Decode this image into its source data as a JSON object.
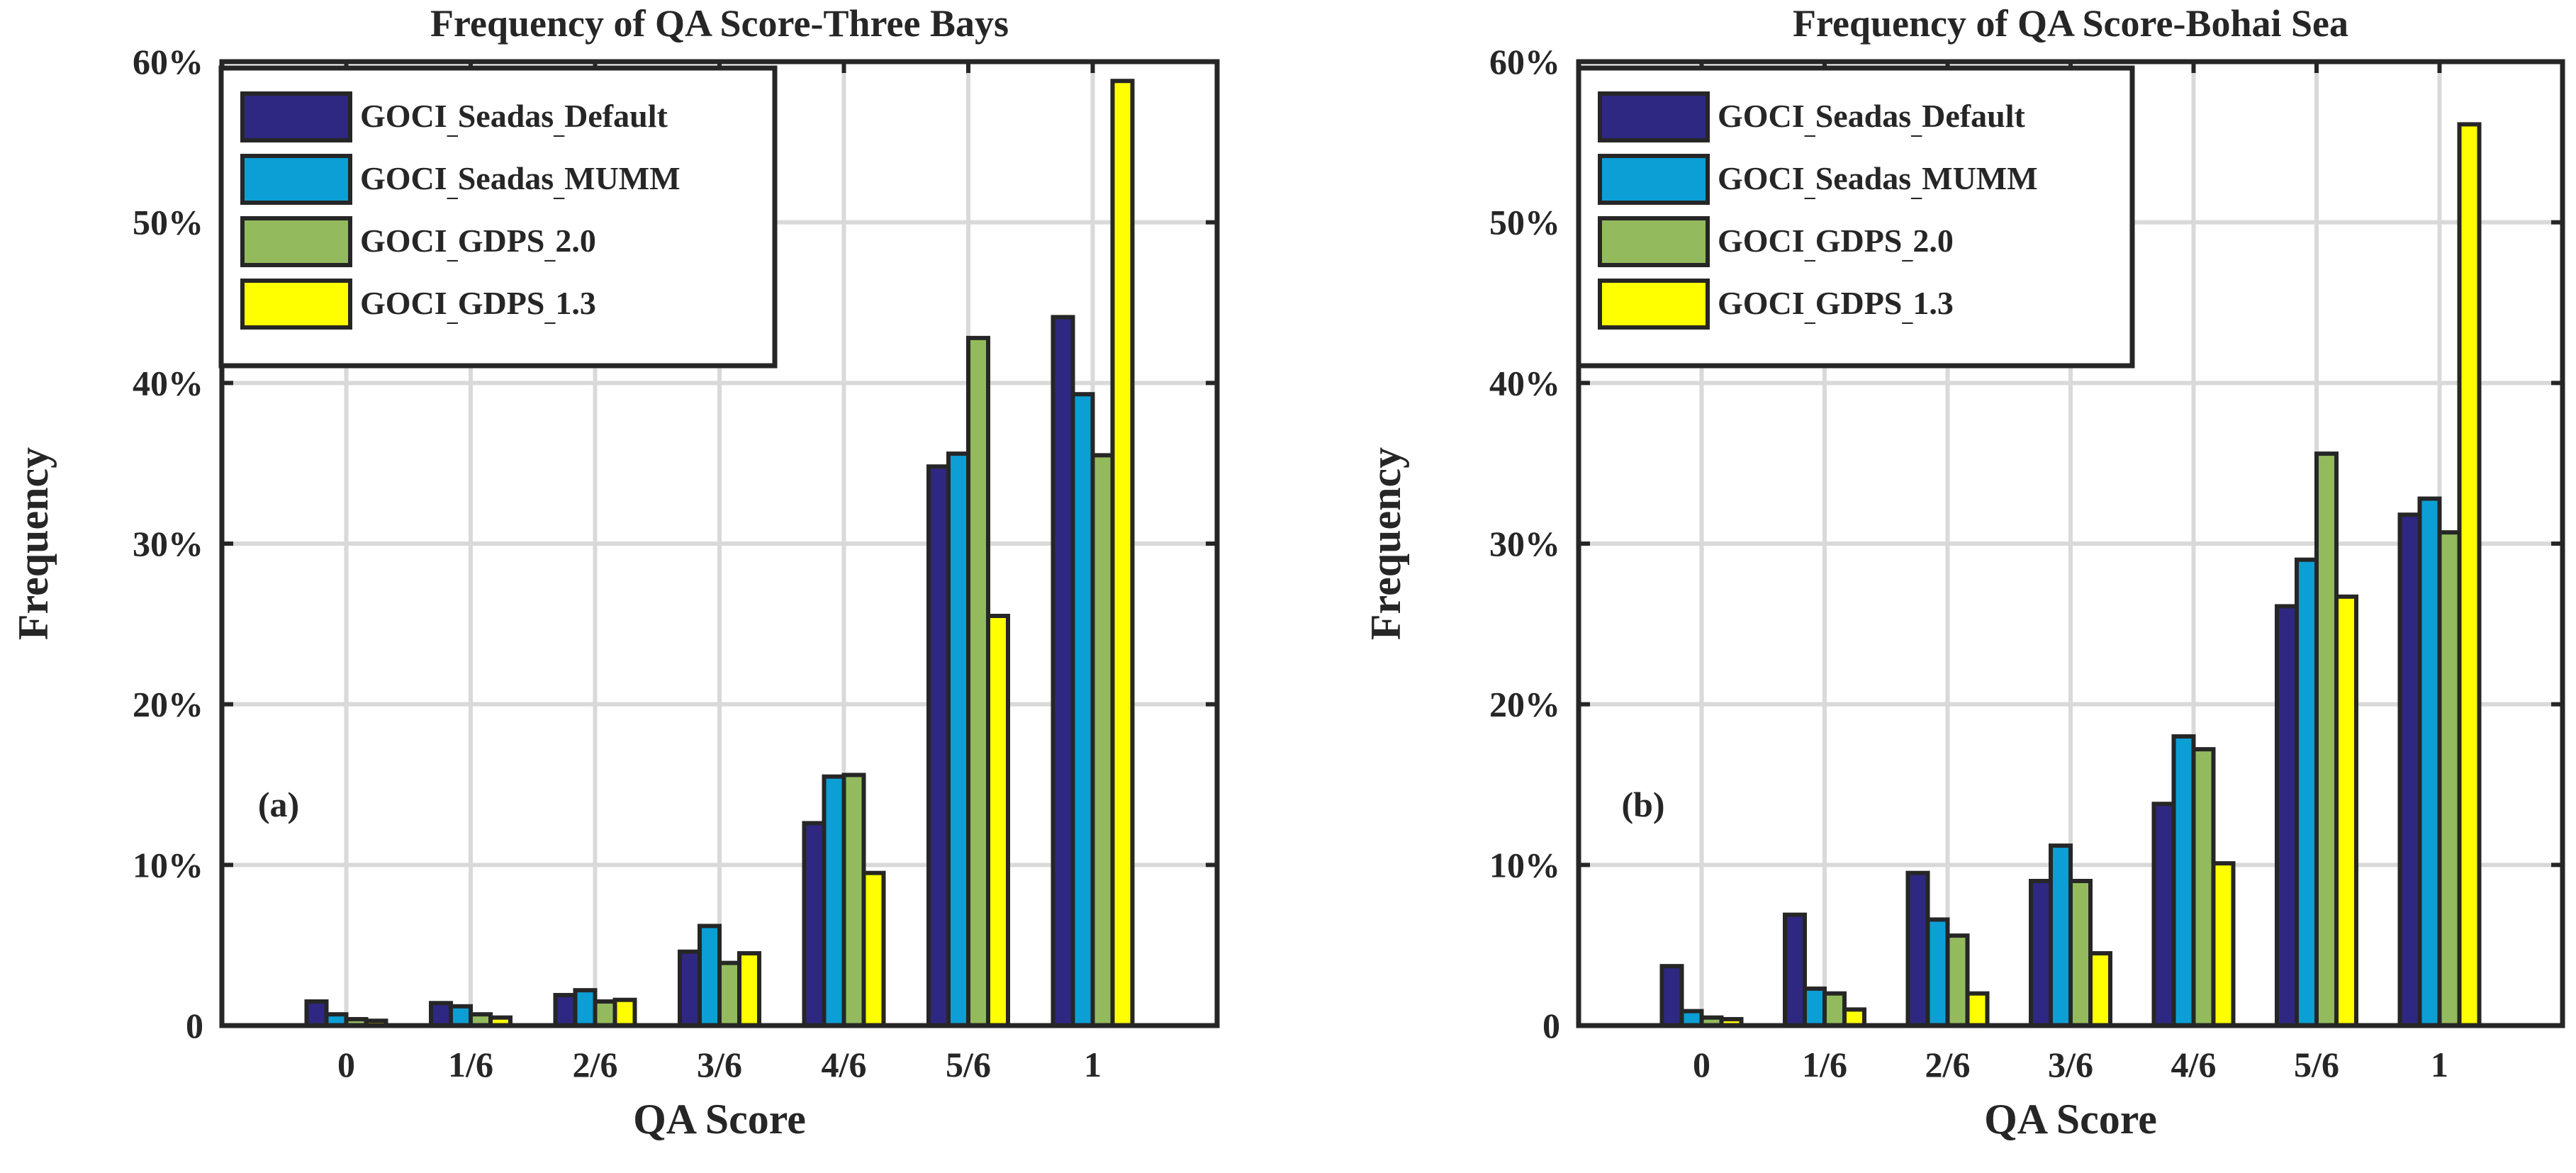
{
  "chart_data": [
    {
      "type": "bar",
      "title": "Frequency of QA Score-Three Bays",
      "xlabel": "QA Score",
      "ylabel": "Frequency",
      "panel_label": "(a)",
      "categories": [
        "0",
        "1/6",
        "2/6",
        "3/6",
        "4/6",
        "5/6",
        "1"
      ],
      "ylim": [
        0,
        60
      ],
      "yticks": [
        "0",
        "10%",
        "20%",
        "30%",
        "40%",
        "50%",
        "60%"
      ],
      "grid": true,
      "legend_position": "top-left",
      "series": [
        {
          "name": "GOCI_Seadas_Default",
          "color": "#2e2882",
          "values": [
            1.5,
            1.4,
            1.9,
            4.6,
            12.6,
            34.8,
            44.1
          ]
        },
        {
          "name": "GOCI_Seadas_MUMM",
          "color": "#0c9fd6",
          "values": [
            0.7,
            1.2,
            2.2,
            6.2,
            15.5,
            35.6,
            39.3
          ]
        },
        {
          "name": "GOCI_GDPS_2.0",
          "color": "#93bb5e",
          "values": [
            0.4,
            0.7,
            1.5,
            3.9,
            15.6,
            42.8,
            35.5
          ]
        },
        {
          "name": "GOCI_GDPS_1.3",
          "color": "#ffff00",
          "values": [
            0.3,
            0.5,
            1.6,
            4.5,
            9.5,
            25.5,
            58.8
          ]
        }
      ]
    },
    {
      "type": "bar",
      "title": "Frequency of QA Score-Bohai Sea",
      "xlabel": "QA Score",
      "ylabel": "Frequency",
      "panel_label": "(b)",
      "categories": [
        "0",
        "1/6",
        "2/6",
        "3/6",
        "4/6",
        "5/6",
        "1"
      ],
      "ylim": [
        0,
        60
      ],
      "yticks": [
        "0",
        "10%",
        "20%",
        "30%",
        "40%",
        "50%",
        "60%"
      ],
      "grid": true,
      "legend_position": "top-left",
      "series": [
        {
          "name": "GOCI_Seadas_Default",
          "color": "#2e2882",
          "values": [
            3.7,
            6.9,
            9.5,
            9.0,
            13.8,
            26.1,
            31.8
          ]
        },
        {
          "name": "GOCI_Seadas_MUMM",
          "color": "#0c9fd6",
          "values": [
            0.9,
            2.3,
            6.6,
            11.2,
            18.0,
            29.0,
            32.8
          ]
        },
        {
          "name": "GOCI_GDPS_2.0",
          "color": "#93bb5e",
          "values": [
            0.5,
            2.0,
            5.6,
            9.0,
            17.2,
            35.6,
            30.7
          ]
        },
        {
          "name": "GOCI_GDPS_1.3",
          "color": "#ffff00",
          "values": [
            0.4,
            1.0,
            2.0,
            4.5,
            10.1,
            26.7,
            56.1
          ]
        }
      ]
    }
  ]
}
